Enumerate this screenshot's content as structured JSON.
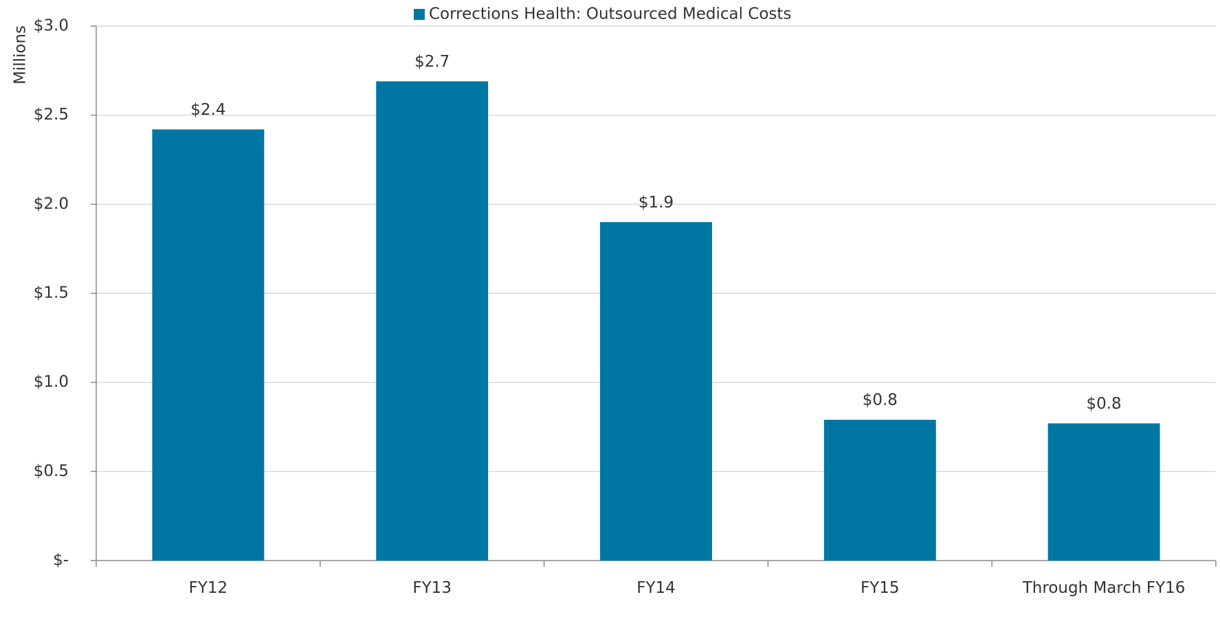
{
  "chart_data": {
    "type": "bar",
    "legend": "Corrections Health: Outsourced Medical Costs",
    "y_label": "Millions",
    "categories": [
      "FY12",
      "FY13",
      "FY14",
      "FY15",
      "Through March FY16"
    ],
    "series": [
      {
        "name": "Corrections Health: Outsourced Medical Costs",
        "color": "#0076a3",
        "values": [
          2.42,
          2.69,
          1.9,
          0.79,
          0.77
        ],
        "value_labels": [
          "$2.4",
          "$2.7",
          "$1.9",
          "$0.8",
          "$0.8"
        ]
      }
    ],
    "ylim": [
      0,
      3.0
    ],
    "yticks": [
      {
        "value": 0,
        "label": "$-"
      },
      {
        "value": 0.5,
        "label": "$0.5"
      },
      {
        "value": 1.0,
        "label": "$1.0"
      },
      {
        "value": 1.5,
        "label": "$1.5"
      },
      {
        "value": 2.0,
        "label": "$2.0"
      },
      {
        "value": 2.5,
        "label": "$2.5"
      },
      {
        "value": 3.0,
        "label": "$3.0"
      }
    ],
    "grid": true
  }
}
